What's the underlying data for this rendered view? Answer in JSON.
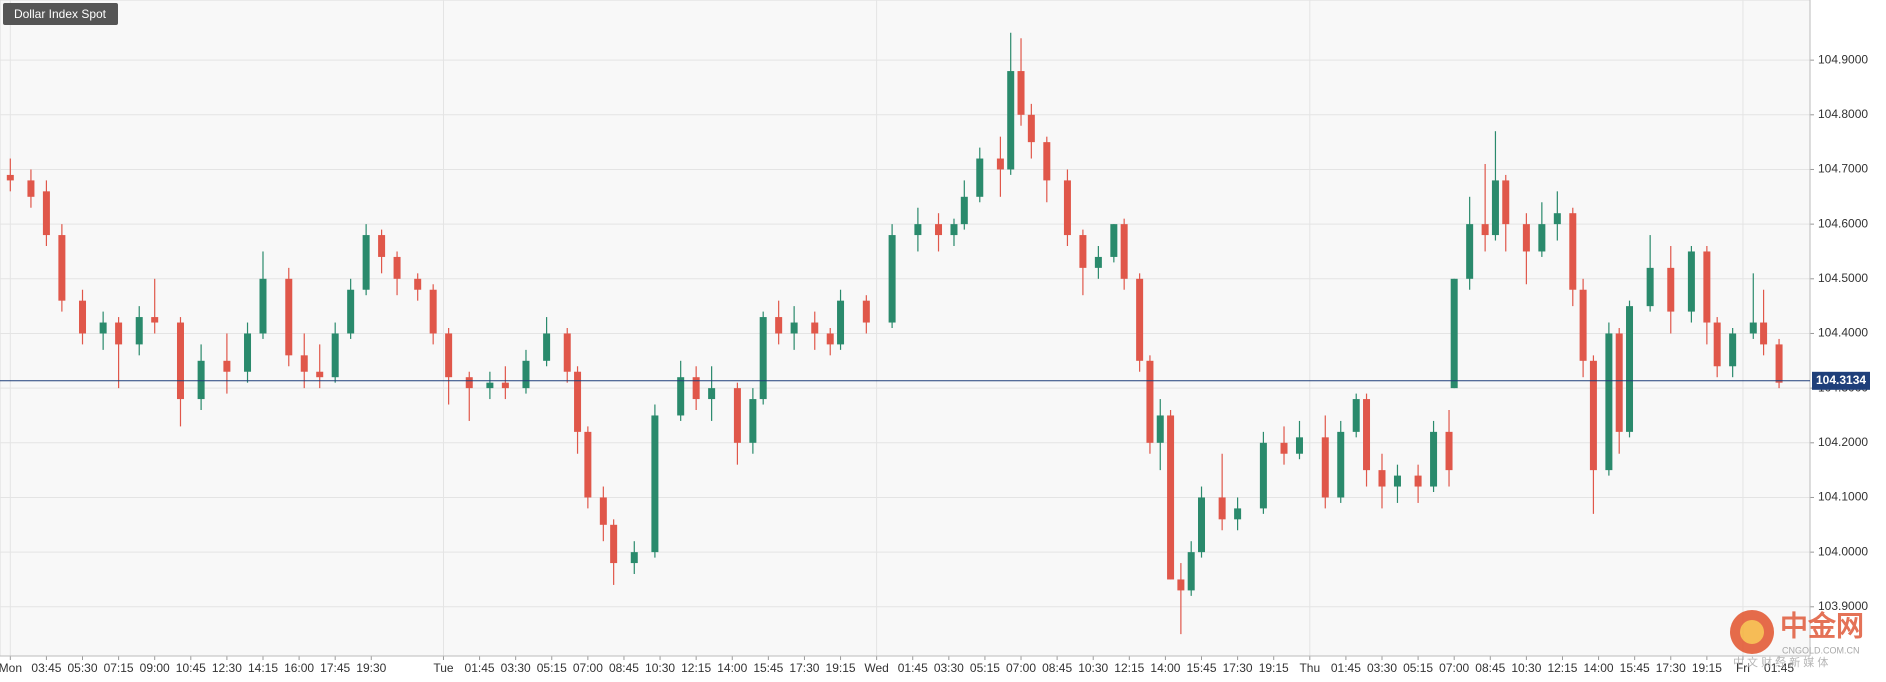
{
  "chart_data": {
    "type": "candlestick",
    "title": "Dollar Index Spot",
    "xlim": [
      -2,
      349
    ],
    "ylim": [
      103.81,
      105.01
    ],
    "yticks": [
      {
        "value": 103.9,
        "label": "103.9000"
      },
      {
        "value": 104.0,
        "label": "104.0000"
      },
      {
        "value": 104.1,
        "label": "104.1000"
      },
      {
        "value": 104.2,
        "label": "104.2000"
      },
      {
        "value": 104.3,
        "label": "104.3000"
      },
      {
        "value": 104.4,
        "label": "104.4000"
      },
      {
        "value": 104.5,
        "label": "104.5000"
      },
      {
        "value": 104.6,
        "label": "104.6000"
      },
      {
        "value": 104.7,
        "label": "104.7000"
      },
      {
        "value": 104.8,
        "label": "104.8000"
      },
      {
        "value": 104.9,
        "label": "104.9000"
      }
    ],
    "xticks": [
      {
        "value": 0,
        "label": "Mon"
      },
      {
        "value": 7,
        "label": "03:45"
      },
      {
        "value": 14,
        "label": "05:30"
      },
      {
        "value": 21,
        "label": "07:15"
      },
      {
        "value": 28,
        "label": "09:00"
      },
      {
        "value": 35,
        "label": "10:45"
      },
      {
        "value": 42,
        "label": "12:30"
      },
      {
        "value": 49,
        "label": "14:15"
      },
      {
        "value": 56,
        "label": "16:00"
      },
      {
        "value": 63,
        "label": "17:45"
      },
      {
        "value": 70,
        "label": "19:30"
      },
      {
        "value": 84,
        "label": "Tue"
      },
      {
        "value": 91,
        "label": "01:45"
      },
      {
        "value": 98,
        "label": "03:30"
      },
      {
        "value": 105,
        "label": "05:15"
      },
      {
        "value": 112,
        "label": "07:00"
      },
      {
        "value": 119,
        "label": "08:45"
      },
      {
        "value": 126,
        "label": "10:30"
      },
      {
        "value": 133,
        "label": "12:15"
      },
      {
        "value": 140,
        "label": "14:00"
      },
      {
        "value": 147,
        "label": "15:45"
      },
      {
        "value": 154,
        "label": "17:30"
      },
      {
        "value": 161,
        "label": "19:15"
      },
      {
        "value": 168,
        "label": "Wed"
      },
      {
        "value": 175,
        "label": "01:45"
      },
      {
        "value": 182,
        "label": "03:30"
      },
      {
        "value": 189,
        "label": "05:15"
      },
      {
        "value": 196,
        "label": "07:00"
      },
      {
        "value": 203,
        "label": "08:45"
      },
      {
        "value": 210,
        "label": "10:30"
      },
      {
        "value": 217,
        "label": "12:15"
      },
      {
        "value": 224,
        "label": "14:00"
      },
      {
        "value": 231,
        "label": "15:45"
      },
      {
        "value": 238,
        "label": "17:30"
      },
      {
        "value": 245,
        "label": "19:15"
      },
      {
        "value": 252,
        "label": "Thu"
      },
      {
        "value": 259,
        "label": "01:45"
      },
      {
        "value": 266,
        "label": "03:30"
      },
      {
        "value": 273,
        "label": "05:15"
      },
      {
        "value": 280,
        "label": "07:00"
      },
      {
        "value": 287,
        "label": "08:45"
      },
      {
        "value": 294,
        "label": "10:30"
      },
      {
        "value": 301,
        "label": "12:15"
      },
      {
        "value": 308,
        "label": "14:00"
      },
      {
        "value": 315,
        "label": "15:45"
      },
      {
        "value": 322,
        "label": "17:30"
      },
      {
        "value": 329,
        "label": "19:15"
      },
      {
        "value": 336,
        "label": "Fri"
      },
      {
        "value": 343,
        "label": "01:45"
      }
    ],
    "day_ticks": [
      0,
      84,
      168,
      252,
      336
    ],
    "grid": true,
    "last_price": 104.3134,
    "last_price_color": "#1f3f7a",
    "series": [
      {
        "up_color": "#2a8a6c",
        "down_color": "#e0574a",
        "x": [
          0,
          4,
          7,
          10,
          14,
          18,
          21,
          25,
          28,
          33,
          37,
          42,
          46,
          49,
          54,
          57,
          60,
          63,
          66,
          69,
          72,
          75,
          79,
          82,
          85,
          89,
          93,
          96,
          100,
          104,
          108,
          110,
          112,
          115,
          117,
          121,
          125,
          130,
          133,
          136,
          141,
          144,
          146,
          149,
          152,
          156,
          159,
          161,
          166,
          171,
          176,
          180,
          183,
          185,
          188,
          192,
          194,
          196,
          198,
          201,
          205,
          208,
          211,
          214,
          216,
          219,
          221,
          223,
          225,
          227,
          229,
          231,
          235,
          238,
          243,
          247,
          250,
          255,
          258,
          261,
          263,
          266,
          269,
          273,
          276,
          279,
          280,
          283,
          286,
          288,
          290,
          294,
          297,
          300,
          303,
          305,
          307,
          310,
          312,
          314,
          318,
          322,
          326,
          329,
          331,
          334,
          338,
          340,
          343
        ],
        "ohlc": [
          [
            104.69,
            104.72,
            104.66,
            104.68
          ],
          [
            104.68,
            104.7,
            104.63,
            104.65
          ],
          [
            104.66,
            104.68,
            104.56,
            104.58
          ],
          [
            104.58,
            104.6,
            104.44,
            104.46
          ],
          [
            104.46,
            104.48,
            104.38,
            104.4
          ],
          [
            104.4,
            104.44,
            104.37,
            104.42
          ],
          [
            104.42,
            104.43,
            104.3,
            104.38
          ],
          [
            104.38,
            104.45,
            104.36,
            104.43
          ],
          [
            104.43,
            104.5,
            104.4,
            104.42
          ],
          [
            104.42,
            104.43,
            104.23,
            104.28
          ],
          [
            104.28,
            104.38,
            104.26,
            104.35
          ],
          [
            104.35,
            104.4,
            104.29,
            104.33
          ],
          [
            104.33,
            104.42,
            104.31,
            104.4
          ],
          [
            104.4,
            104.55,
            104.39,
            104.5
          ],
          [
            104.5,
            104.52,
            104.34,
            104.36
          ],
          [
            104.36,
            104.4,
            104.3,
            104.33
          ],
          [
            104.33,
            104.38,
            104.3,
            104.32
          ],
          [
            104.32,
            104.42,
            104.31,
            104.4
          ],
          [
            104.4,
            104.5,
            104.39,
            104.48
          ],
          [
            104.48,
            104.6,
            104.47,
            104.58
          ],
          [
            104.58,
            104.59,
            104.51,
            104.54
          ],
          [
            104.54,
            104.55,
            104.47,
            104.5
          ],
          [
            104.5,
            104.51,
            104.46,
            104.48
          ],
          [
            104.48,
            104.49,
            104.38,
            104.4
          ],
          [
            104.4,
            104.41,
            104.27,
            104.32
          ],
          [
            104.32,
            104.33,
            104.24,
            104.3
          ],
          [
            104.3,
            104.33,
            104.28,
            104.31
          ],
          [
            104.31,
            104.34,
            104.28,
            104.3
          ],
          [
            104.3,
            104.37,
            104.29,
            104.35
          ],
          [
            104.35,
            104.43,
            104.34,
            104.4
          ],
          [
            104.4,
            104.41,
            104.31,
            104.33
          ],
          [
            104.33,
            104.34,
            104.18,
            104.22
          ],
          [
            104.22,
            104.23,
            104.08,
            104.1
          ],
          [
            104.1,
            104.12,
            104.02,
            104.05
          ],
          [
            104.05,
            104.06,
            103.94,
            103.98
          ],
          [
            103.98,
            104.02,
            103.96,
            104.0
          ],
          [
            104.0,
            104.27,
            103.99,
            104.25
          ],
          [
            104.25,
            104.35,
            104.24,
            104.32
          ],
          [
            104.32,
            104.34,
            104.26,
            104.28
          ],
          [
            104.28,
            104.34,
            104.24,
            104.3
          ],
          [
            104.3,
            104.31,
            104.16,
            104.2
          ],
          [
            104.2,
            104.3,
            104.18,
            104.28
          ],
          [
            104.28,
            104.44,
            104.27,
            104.43
          ],
          [
            104.43,
            104.46,
            104.38,
            104.4
          ],
          [
            104.4,
            104.45,
            104.37,
            104.42
          ],
          [
            104.42,
            104.44,
            104.37,
            104.4
          ],
          [
            104.4,
            104.41,
            104.36,
            104.38
          ],
          [
            104.38,
            104.48,
            104.37,
            104.46
          ],
          [
            104.46,
            104.47,
            104.4,
            104.42
          ],
          [
            104.42,
            104.6,
            104.41,
            104.58
          ],
          [
            104.58,
            104.63,
            104.55,
            104.6
          ],
          [
            104.6,
            104.62,
            104.55,
            104.58
          ],
          [
            104.58,
            104.61,
            104.56,
            104.6
          ],
          [
            104.6,
            104.68,
            104.59,
            104.65
          ],
          [
            104.65,
            104.74,
            104.64,
            104.72
          ],
          [
            104.72,
            104.76,
            104.65,
            104.7
          ],
          [
            104.7,
            104.95,
            104.69,
            104.88
          ],
          [
            104.88,
            104.94,
            104.78,
            104.8
          ],
          [
            104.8,
            104.82,
            104.72,
            104.75
          ],
          [
            104.75,
            104.76,
            104.64,
            104.68
          ],
          [
            104.68,
            104.7,
            104.56,
            104.58
          ],
          [
            104.58,
            104.59,
            104.47,
            104.52
          ],
          [
            104.52,
            104.56,
            104.5,
            104.54
          ],
          [
            104.54,
            104.6,
            104.53,
            104.6
          ],
          [
            104.6,
            104.61,
            104.48,
            104.5
          ],
          [
            104.5,
            104.51,
            104.33,
            104.35
          ],
          [
            104.35,
            104.36,
            104.18,
            104.2
          ],
          [
            104.2,
            104.28,
            104.15,
            104.25
          ],
          [
            104.25,
            104.26,
            103.95,
            103.95
          ],
          [
            103.95,
            103.98,
            103.85,
            103.93
          ],
          [
            103.93,
            104.02,
            103.92,
            104.0
          ],
          [
            104.0,
            104.12,
            103.99,
            104.1
          ],
          [
            104.1,
            104.18,
            104.04,
            104.06
          ],
          [
            104.06,
            104.1,
            104.04,
            104.08
          ],
          [
            104.08,
            104.22,
            104.07,
            104.2
          ],
          [
            104.2,
            104.23,
            104.16,
            104.18
          ],
          [
            104.18,
            104.24,
            104.17,
            104.21
          ],
          [
            104.21,
            104.25,
            104.08,
            104.1
          ],
          [
            104.1,
            104.24,
            104.09,
            104.22
          ],
          [
            104.22,
            104.29,
            104.21,
            104.28
          ],
          [
            104.28,
            104.29,
            104.12,
            104.15
          ],
          [
            104.15,
            104.18,
            104.08,
            104.12
          ],
          [
            104.12,
            104.16,
            104.09,
            104.14
          ],
          [
            104.14,
            104.16,
            104.09,
            104.12
          ],
          [
            104.12,
            104.24,
            104.11,
            104.22
          ],
          [
            104.22,
            104.26,
            104.12,
            104.15
          ],
          [
            104.3,
            104.5,
            104.3,
            104.5
          ],
          [
            104.5,
            104.65,
            104.48,
            104.6
          ],
          [
            104.6,
            104.71,
            104.55,
            104.58
          ],
          [
            104.58,
            104.77,
            104.57,
            104.68
          ],
          [
            104.68,
            104.69,
            104.55,
            104.6
          ],
          [
            104.6,
            104.62,
            104.49,
            104.55
          ],
          [
            104.55,
            104.64,
            104.54,
            104.6
          ],
          [
            104.6,
            104.66,
            104.57,
            104.62
          ],
          [
            104.62,
            104.63,
            104.45,
            104.48
          ],
          [
            104.48,
            104.5,
            104.32,
            104.35
          ],
          [
            104.35,
            104.36,
            104.07,
            104.15
          ],
          [
            104.15,
            104.42,
            104.14,
            104.4
          ],
          [
            104.4,
            104.41,
            104.18,
            104.22
          ],
          [
            104.22,
            104.46,
            104.21,
            104.45
          ],
          [
            104.45,
            104.58,
            104.44,
            104.52
          ],
          [
            104.52,
            104.56,
            104.4,
            104.44
          ],
          [
            104.44,
            104.56,
            104.42,
            104.55
          ],
          [
            104.55,
            104.56,
            104.38,
            104.42
          ],
          [
            104.42,
            104.43,
            104.32,
            104.34
          ],
          [
            104.34,
            104.41,
            104.32,
            104.4
          ],
          [
            104.4,
            104.51,
            104.39,
            104.42
          ],
          [
            104.42,
            104.48,
            104.36,
            104.38
          ],
          [
            104.38,
            104.39,
            104.3,
            104.31
          ]
        ]
      }
    ]
  },
  "watermark": {
    "logo": "中金网",
    "url": "CNGOLD.COM.CN",
    "slogan": "中 文 财 经 新 媒 体"
  }
}
